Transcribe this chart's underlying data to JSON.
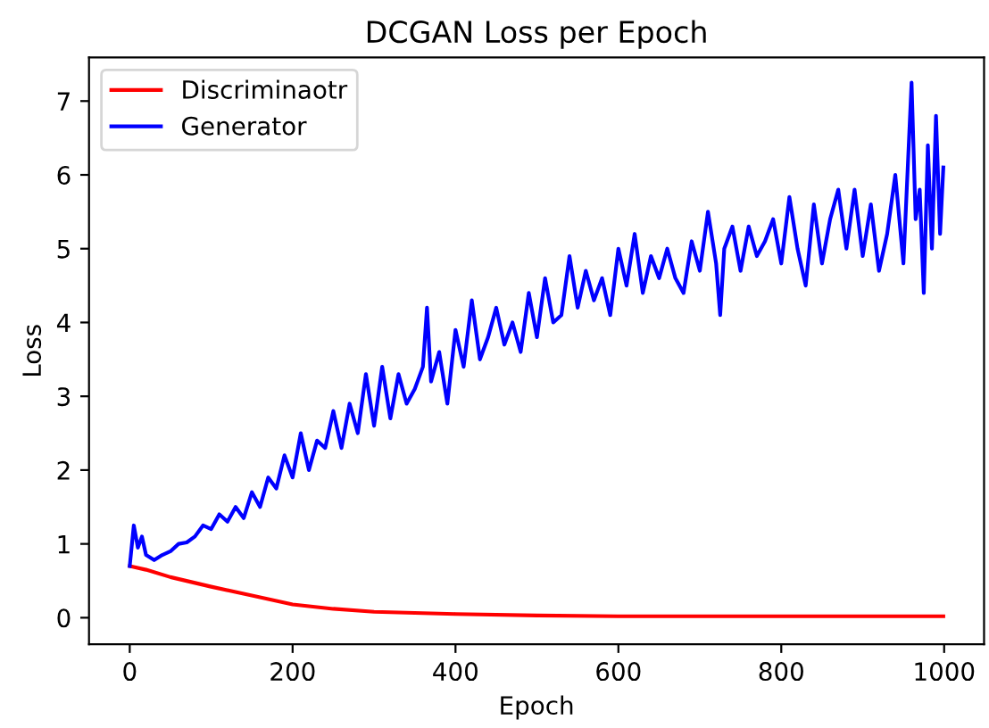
{
  "chart_data": {
    "type": "line",
    "title": "DCGAN Loss per Epoch",
    "xlabel": "Epoch",
    "ylabel": "Loss",
    "xlim": [
      -50,
      1049
    ],
    "ylim": [
      -0.36,
      7.59
    ],
    "xticks": [
      0,
      200,
      400,
      600,
      800,
      1000
    ],
    "yticks": [
      0,
      1,
      2,
      3,
      4,
      5,
      6,
      7
    ],
    "legend": "top left",
    "grid": false,
    "line_style": "solid",
    "marker": "none",
    "series": [
      {
        "name": "Discriminaotr",
        "color": "#ff0000",
        "x": [
          0,
          20,
          50,
          100,
          150,
          200,
          250,
          300,
          400,
          500,
          600,
          800,
          999
        ],
        "values": [
          0.7,
          0.65,
          0.55,
          0.42,
          0.3,
          0.18,
          0.12,
          0.08,
          0.05,
          0.03,
          0.02,
          0.02,
          0.02
        ]
      },
      {
        "name": "Generator",
        "color": "#0000ff",
        "x": [
          0,
          5,
          10,
          15,
          20,
          30,
          40,
          50,
          60,
          70,
          80,
          90,
          100,
          110,
          120,
          130,
          140,
          150,
          160,
          170,
          180,
          190,
          200,
          210,
          220,
          230,
          240,
          250,
          260,
          270,
          280,
          290,
          300,
          310,
          320,
          330,
          340,
          350,
          360,
          365,
          370,
          380,
          390,
          400,
          410,
          420,
          430,
          440,
          450,
          460,
          470,
          480,
          490,
          500,
          510,
          520,
          530,
          540,
          550,
          560,
          570,
          580,
          590,
          600,
          610,
          620,
          630,
          640,
          650,
          660,
          670,
          680,
          690,
          700,
          710,
          720,
          725,
          730,
          740,
          750,
          760,
          770,
          780,
          790,
          800,
          810,
          820,
          830,
          840,
          850,
          860,
          870,
          880,
          890,
          900,
          910,
          920,
          930,
          940,
          950,
          960,
          965,
          970,
          975,
          980,
          985,
          990,
          995,
          999
        ],
        "values": [
          0.7,
          1.25,
          0.95,
          1.1,
          0.85,
          0.78,
          0.85,
          0.9,
          1.0,
          1.02,
          1.1,
          1.25,
          1.2,
          1.4,
          1.3,
          1.5,
          1.35,
          1.7,
          1.5,
          1.9,
          1.75,
          2.2,
          1.9,
          2.5,
          2.0,
          2.4,
          2.3,
          2.8,
          2.3,
          2.9,
          2.5,
          3.3,
          2.6,
          3.4,
          2.7,
          3.3,
          2.9,
          3.1,
          3.4,
          4.2,
          3.2,
          3.6,
          2.9,
          3.9,
          3.4,
          4.3,
          3.5,
          3.8,
          4.2,
          3.7,
          4.0,
          3.6,
          4.4,
          3.8,
          4.6,
          4.0,
          4.1,
          4.9,
          4.2,
          4.7,
          4.3,
          4.6,
          4.1,
          5.0,
          4.5,
          5.2,
          4.4,
          4.9,
          4.6,
          5.0,
          4.6,
          4.4,
          5.1,
          4.7,
          5.5,
          4.8,
          4.1,
          5.0,
          5.3,
          4.7,
          5.3,
          4.9,
          5.1,
          5.4,
          4.8,
          5.7,
          5.0,
          4.5,
          5.6,
          4.8,
          5.4,
          5.8,
          5.0,
          5.8,
          4.9,
          5.6,
          4.7,
          5.2,
          6.0,
          4.8,
          7.25,
          5.4,
          5.8,
          4.4,
          6.4,
          5.0,
          6.8,
          5.2,
          6.1
        ]
      }
    ]
  }
}
